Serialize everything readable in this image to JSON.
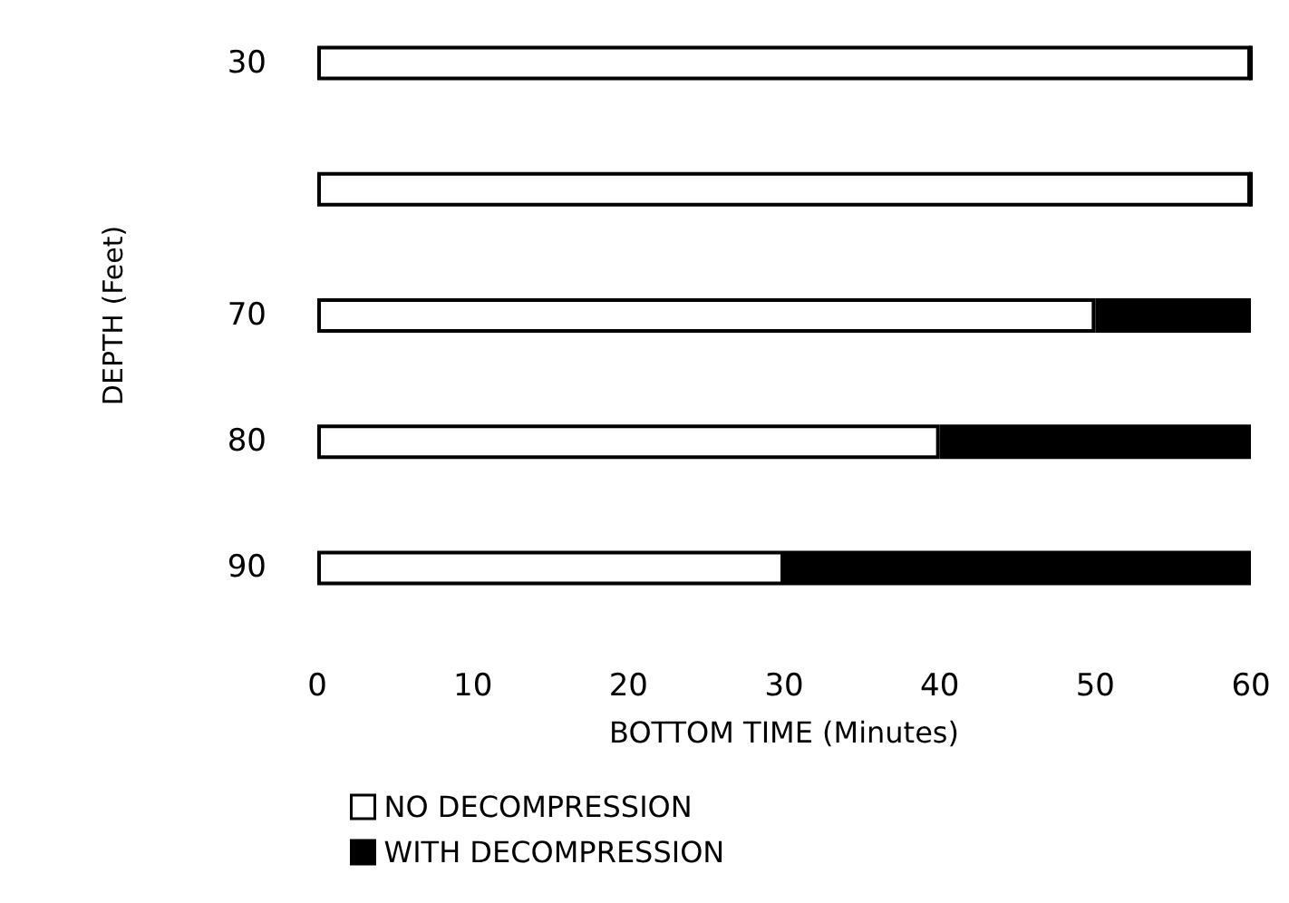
{
  "chart_data": {
    "type": "bar",
    "orientation": "horizontal",
    "stacked": true,
    "xlabel": "BOTTOM TIME (Minutes)",
    "ylabel": "DEPTH (Feet)",
    "categories": [
      "30",
      null,
      "70",
      "80",
      "90"
    ],
    "series": [
      {
        "name": "NO DECOMPRESSION",
        "color": "#ffffff",
        "values": [
          60,
          60,
          50,
          40,
          30
        ]
      },
      {
        "name": "WITH DECOMPRESSION",
        "color": "#000000",
        "values": [
          0,
          0,
          10,
          20,
          30
        ]
      }
    ],
    "xlim": [
      0,
      60
    ],
    "xticks": [
      0,
      10,
      20,
      30,
      40,
      50,
      60
    ],
    "grid": false,
    "legend": "bottom"
  }
}
